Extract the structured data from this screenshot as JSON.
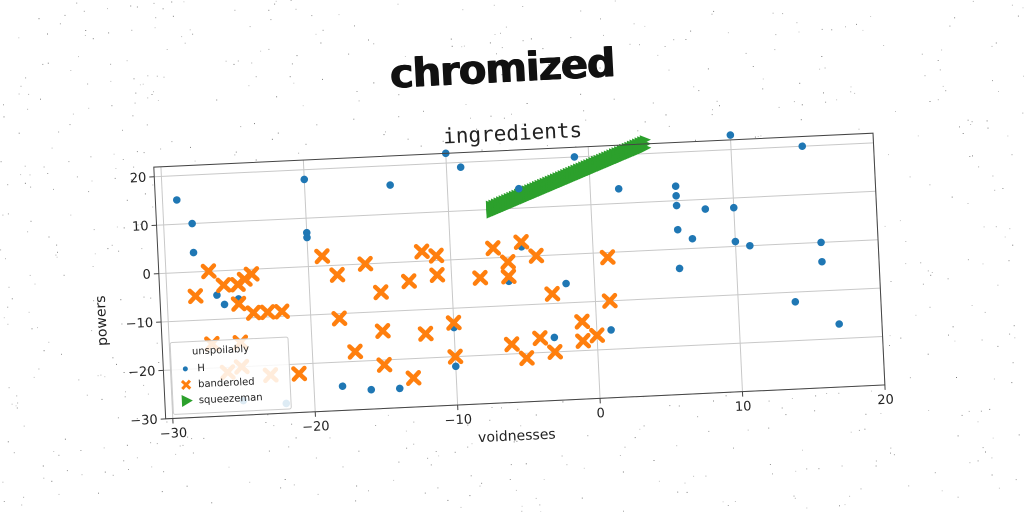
{
  "page": {
    "title": "chromized"
  },
  "colors": {
    "h": "#1f77b4",
    "banderoled": "#ff7f0e",
    "squeezeman": "#2ca02c",
    "grid": "#c8c8c8",
    "frame": "#444444"
  },
  "chart_data": {
    "type": "scatter",
    "title": "ingredients",
    "xlabel": "voidnesses",
    "ylabel": "powers",
    "xlim": [
      -30.5,
      20
    ],
    "ylim": [
      -30,
      22
    ],
    "xticks": [
      -30,
      -20,
      -10,
      0,
      10,
      20
    ],
    "xtick_labels": [
      "−30",
      "−20",
      "−10",
      "0",
      "10",
      "20"
    ],
    "yticks": [
      -30,
      -20,
      -10,
      0,
      10,
      20
    ],
    "ytick_labels": [
      "−30",
      "−20",
      "−10",
      "0",
      "10",
      "20"
    ],
    "grid": true,
    "legend": {
      "title": "unspoilably",
      "placement": "lower-left"
    },
    "series": [
      {
        "name": "H",
        "marker": "circle",
        "points": [
          [
            -29,
            15
          ],
          [
            -28,
            10
          ],
          [
            -28,
            4
          ],
          [
            -26.5,
            -5
          ],
          [
            -26,
            -7
          ],
          [
            -25,
            -6
          ],
          [
            -20,
            18
          ],
          [
            -20,
            7
          ],
          [
            -20,
            6
          ],
          [
            -14,
            16
          ],
          [
            -10,
            22
          ],
          [
            -9,
            19
          ],
          [
            -5,
            14
          ],
          [
            -5,
            2
          ],
          [
            -6,
            -5
          ],
          [
            -2,
            -6
          ],
          [
            -1,
            20
          ],
          [
            -3,
            -17
          ],
          [
            1,
            -16
          ],
          [
            2,
            13
          ],
          [
            6,
            13
          ],
          [
            6,
            11
          ],
          [
            6,
            9
          ],
          [
            6,
            4
          ],
          [
            6,
            -4
          ],
          [
            7,
            2
          ],
          [
            8,
            8
          ],
          [
            10,
            8
          ],
          [
            10,
            1
          ],
          [
            10,
            23
          ],
          [
            11,
            0
          ],
          [
            15,
            20
          ],
          [
            16,
            0
          ],
          [
            16,
            -4
          ],
          [
            14,
            -12
          ],
          [
            17,
            -17
          ],
          [
            -10,
            -14
          ],
          [
            -10,
            -22
          ],
          [
            -18,
            -25
          ],
          [
            -16,
            -26
          ],
          [
            -14,
            -26
          ],
          [
            -22,
            -28
          ],
          [
            -25,
            -27
          ]
        ]
      },
      {
        "name": "banderoled",
        "marker": "x",
        "points": [
          [
            -28,
            -5
          ],
          [
            -27,
            0
          ],
          [
            -26,
            -3
          ],
          [
            -25,
            -3
          ],
          [
            -24.5,
            -2
          ],
          [
            -24,
            -1
          ],
          [
            -25,
            -7
          ],
          [
            -24,
            -9
          ],
          [
            -23,
            -9
          ],
          [
            -22,
            -9
          ],
          [
            -27,
            -15
          ],
          [
            -25,
            -15
          ],
          [
            -26,
            -21
          ],
          [
            -25,
            -20
          ],
          [
            -23,
            -22
          ],
          [
            -21,
            -22
          ],
          [
            -19,
            2
          ],
          [
            -18,
            -2
          ],
          [
            -16,
            0
          ],
          [
            -15,
            -6
          ],
          [
            -18,
            -11
          ],
          [
            -17,
            -18
          ],
          [
            -15,
            -14
          ],
          [
            -15,
            -21
          ],
          [
            -13,
            -4
          ],
          [
            -13,
            -24
          ],
          [
            -12,
            2
          ],
          [
            -11,
            1
          ],
          [
            -11,
            -3
          ],
          [
            -10,
            -20
          ],
          [
            -10,
            -13
          ],
          [
            -8,
            -4
          ],
          [
            -7,
            2
          ],
          [
            -6,
            -4
          ],
          [
            -6,
            -1
          ],
          [
            -5,
            3
          ],
          [
            -4,
            0
          ],
          [
            -3,
            -8
          ],
          [
            -4,
            -17
          ],
          [
            -3,
            -20
          ],
          [
            -1,
            -14
          ],
          [
            -1,
            -18
          ],
          [
            0,
            -17
          ],
          [
            1,
            -10
          ],
          [
            1,
            -1
          ],
          [
            -6,
            -18
          ],
          [
            -5,
            -21
          ],
          [
            -12,
            -15
          ]
        ]
      },
      {
        "name": "squeezeman",
        "marker": "triangle-right",
        "band": [
          [
            -7,
            10
          ],
          [
            4,
            22
          ]
        ]
      }
    ]
  }
}
